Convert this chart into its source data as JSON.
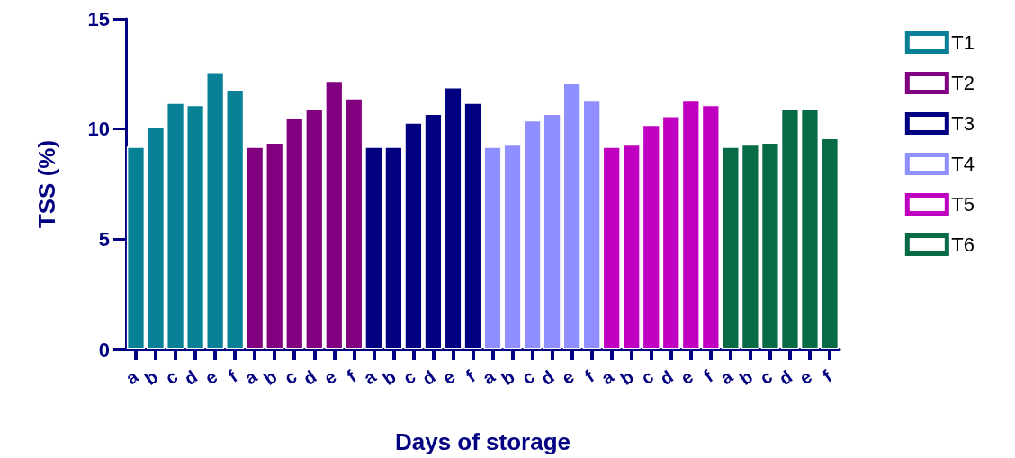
{
  "chart_data": {
    "type": "bar",
    "xlabel": "Days of storage",
    "ylabel": "TSS (%)",
    "categories": [
      "a",
      "b",
      "c",
      "d",
      "e",
      "f",
      "a",
      "b",
      "c",
      "d",
      "e",
      "f",
      "a",
      "b",
      "c",
      "d",
      "e",
      "f",
      "a",
      "b",
      "c",
      "d",
      "e",
      "f",
      "a",
      "b",
      "c",
      "d",
      "e",
      "f",
      "a",
      "b",
      "c",
      "d",
      "e",
      "f"
    ],
    "series": [
      {
        "name": "T1",
        "color": "#088096",
        "values": [
          9.2,
          10.1,
          11.2,
          11.1,
          12.6,
          11.8,
          null,
          null,
          null,
          null,
          null,
          null,
          null,
          null,
          null,
          null,
          null,
          null,
          null,
          null,
          null,
          null,
          null,
          null,
          null,
          null,
          null,
          null,
          null,
          null,
          null,
          null,
          null,
          null,
          null,
          null
        ]
      },
      {
        "name": "T2",
        "color": "#800080",
        "values": [
          null,
          null,
          null,
          null,
          null,
          null,
          9.2,
          9.4,
          10.5,
          10.9,
          12.2,
          11.4,
          null,
          null,
          null,
          null,
          null,
          null,
          null,
          null,
          null,
          null,
          null,
          null,
          null,
          null,
          null,
          null,
          null,
          null,
          null,
          null,
          null,
          null,
          null,
          null
        ]
      },
      {
        "name": "T3",
        "color": "#000080",
        "values": [
          null,
          null,
          null,
          null,
          null,
          null,
          null,
          null,
          null,
          null,
          null,
          null,
          9.2,
          9.2,
          10.3,
          10.7,
          11.9,
          11.2,
          null,
          null,
          null,
          null,
          null,
          null,
          null,
          null,
          null,
          null,
          null,
          null,
          null,
          null,
          null,
          null,
          null,
          null
        ]
      },
      {
        "name": "T4",
        "color": "#8f8fff",
        "values": [
          null,
          null,
          null,
          null,
          null,
          null,
          null,
          null,
          null,
          null,
          null,
          null,
          null,
          null,
          null,
          null,
          null,
          null,
          9.2,
          9.3,
          10.4,
          10.7,
          12.1,
          11.3,
          null,
          null,
          null,
          null,
          null,
          null,
          null,
          null,
          null,
          null,
          null,
          null
        ]
      },
      {
        "name": "T5",
        "color": "#c000c0",
        "values": [
          null,
          null,
          null,
          null,
          null,
          null,
          null,
          null,
          null,
          null,
          null,
          null,
          null,
          null,
          null,
          null,
          null,
          null,
          null,
          null,
          null,
          null,
          null,
          null,
          9.2,
          9.3,
          10.2,
          10.6,
          11.3,
          11.1,
          null,
          null,
          null,
          null,
          null,
          null
        ]
      },
      {
        "name": "T6",
        "color": "#076b45",
        "values": [
          null,
          null,
          null,
          null,
          null,
          null,
          null,
          null,
          null,
          null,
          null,
          null,
          null,
          null,
          null,
          null,
          null,
          null,
          null,
          null,
          null,
          null,
          null,
          null,
          null,
          null,
          null,
          null,
          null,
          null,
          9.2,
          9.3,
          9.4,
          10.9,
          10.9,
          9.6
        ]
      }
    ],
    "ylim": [
      0,
      15
    ],
    "yticks": [
      0,
      5,
      10,
      15
    ],
    "grid": false,
    "legend": "right"
  }
}
